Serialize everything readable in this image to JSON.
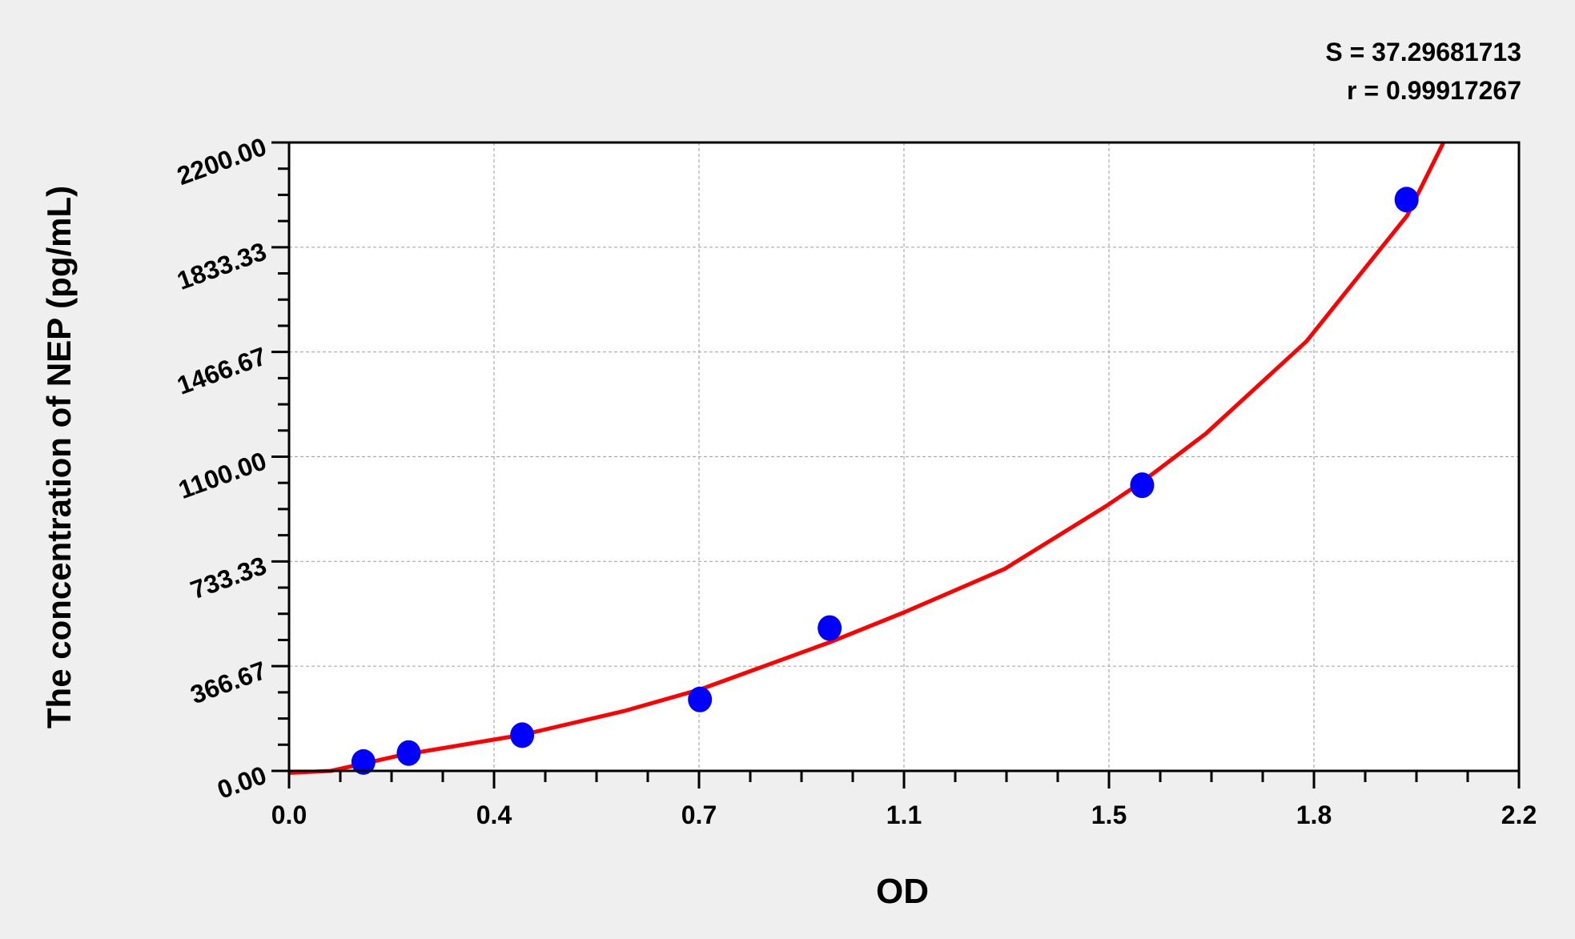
{
  "chart_data": {
    "type": "scatter",
    "title": "",
    "xlabel": "OD",
    "ylabel": "The concentration of NEP (pg/mL)",
    "xlim": [
      0,
      2.2
    ],
    "ylim": [
      0,
      2200
    ],
    "x_tick_labels": [
      "0.0",
      "0.4",
      "0.7",
      "1.1",
      "1.5",
      "1.8",
      "2.2"
    ],
    "y_tick_labels": [
      "0.00",
      "366.67",
      "733.33",
      "1100.00",
      "1466.67",
      "1833.33",
      "2200.00"
    ],
    "grid": true,
    "annotations": [
      "S = 37.29681713",
      "r = 0.99917267"
    ],
    "series": [
      {
        "type": "scatter",
        "color": "#0000ff",
        "x": [
          0.133,
          0.214,
          0.417,
          0.735,
          0.967,
          1.526,
          1.999
        ],
        "y": [
          31.25,
          62.5,
          125,
          250,
          500,
          1000,
          2000
        ]
      },
      {
        "type": "line",
        "color": "#ff0000",
        "x": [
          0,
          0.075,
          0.2,
          0.417,
          0.6,
          0.735,
          0.967,
          1.1,
          1.28,
          1.46,
          1.526,
          1.64,
          1.82,
          2.0,
          2.065
        ],
        "y": [
          -7,
          0,
          55,
          126,
          210,
          285,
          450,
          555,
          707,
          925,
          1012,
          1181,
          1504,
          1944,
          2200
        ]
      }
    ]
  }
}
